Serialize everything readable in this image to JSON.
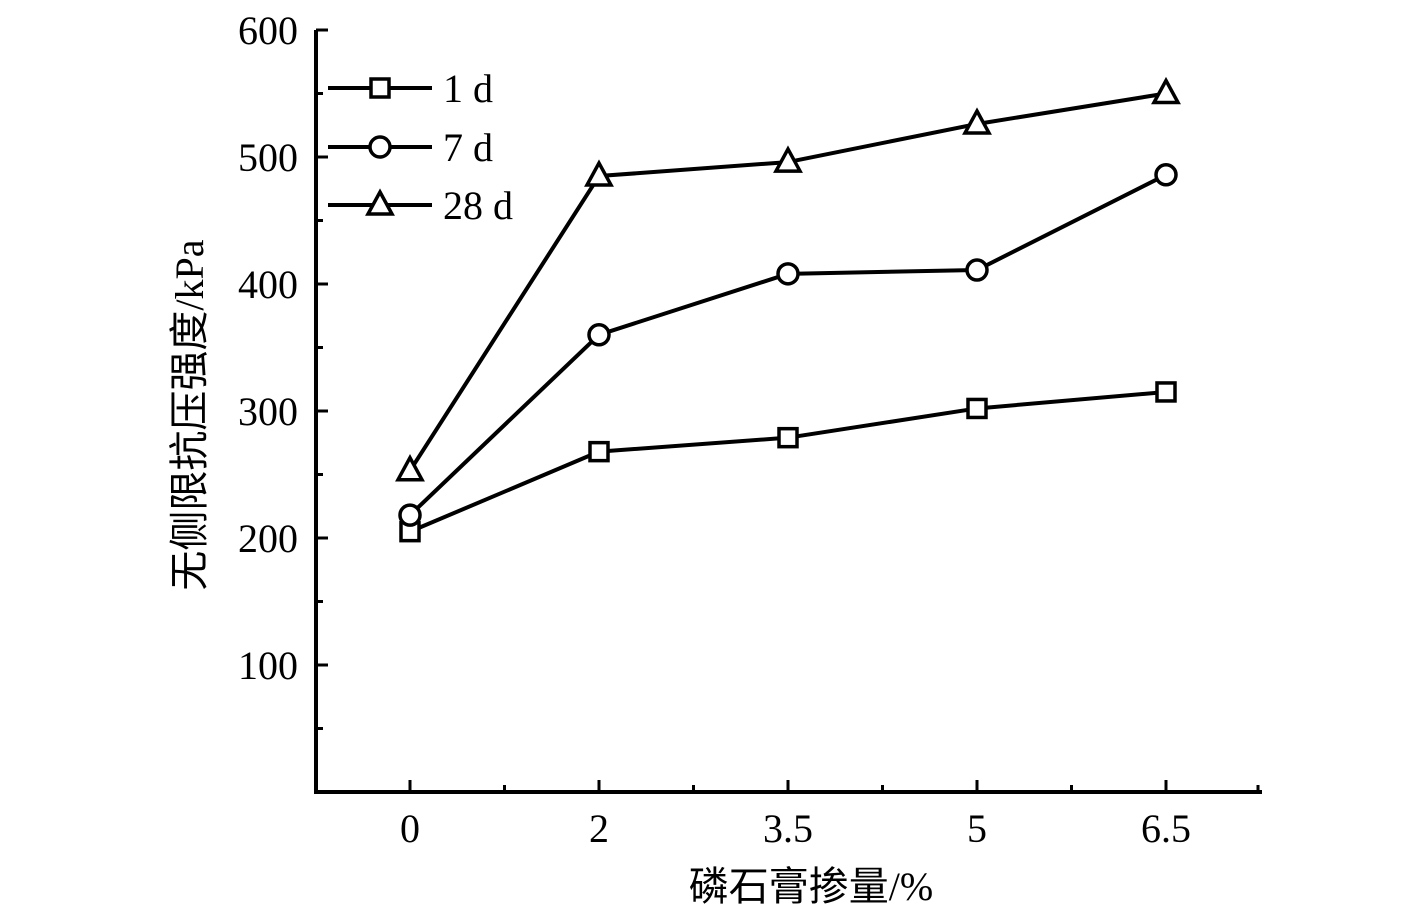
{
  "chart_data": {
    "type": "line",
    "categories": [
      "0",
      "2",
      "3.5",
      "5",
      "6.5"
    ],
    "xlabel": "磷石膏掺量/%",
    "ylabel": "无侧限抗压强度/kPa",
    "ylim": [
      0,
      600
    ],
    "yticks": [
      "100",
      "200",
      "300",
      "400",
      "500",
      "600"
    ],
    "grid": false,
    "legend_position": "top-left",
    "series": [
      {
        "name": "1 d",
        "marker": "square",
        "values": [
          205,
          268,
          279,
          302,
          315
        ]
      },
      {
        "name": "7 d",
        "marker": "circle",
        "values": [
          218,
          360,
          408,
          411,
          486
        ]
      },
      {
        "name": "28 d",
        "marker": "triangle",
        "values": [
          253,
          485,
          496,
          526,
          550
        ]
      }
    ]
  }
}
